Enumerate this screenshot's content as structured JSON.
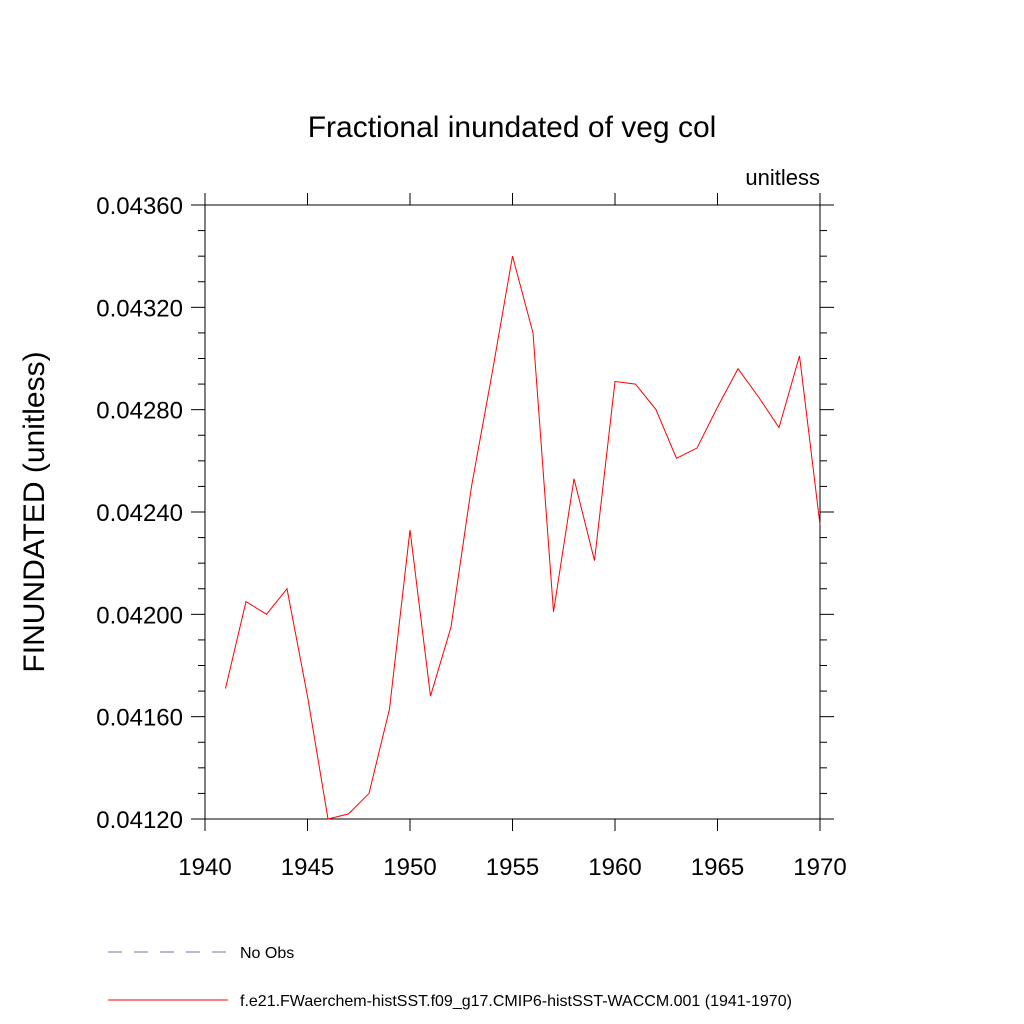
{
  "chart_data": {
    "type": "line",
    "title": "Fractional inundated of veg col",
    "units_label": "unitless",
    "ylabel": "FINUNDATED  (unitless)",
    "xlabel": "",
    "xlim": [
      1940,
      1970
    ],
    "ylim": [
      0.0412,
      0.0436
    ],
    "x_ticks": [
      1940,
      1945,
      1950,
      1955,
      1960,
      1965,
      1970
    ],
    "x_tick_labels": [
      "1940",
      "1945",
      "1950",
      "1955",
      "1960",
      "1965",
      "1970"
    ],
    "y_ticks": [
      0.0412,
      0.0416,
      0.042,
      0.0424,
      0.0428,
      0.0432,
      0.0436
    ],
    "y_tick_labels": [
      "0.04120",
      "0.04160",
      "0.04200",
      "0.04240",
      "0.04280",
      "0.04320",
      "0.04360"
    ],
    "grid": false,
    "legend_position": "bottom",
    "legend": [
      {
        "label": "No Obs",
        "style": "dashed",
        "color": "#7a6ea8"
      },
      {
        "label": "f.e21.FWaerchem-histSST.f09_g17.CMIP6-histSST-WACCM.001 (1941-1970)",
        "style": "solid",
        "color": "#ff0000"
      }
    ],
    "series": [
      {
        "name": "f.e21.FWaerchem-histSST.f09_g17.CMIP6-histSST-WACCM.001 (1941-1970)",
        "color": "#ff0000",
        "x": [
          1941,
          1942,
          1943,
          1944,
          1945,
          1946,
          1947,
          1948,
          1949,
          1950,
          1951,
          1952,
          1953,
          1954,
          1955,
          1956,
          1957,
          1958,
          1959,
          1960,
          1961,
          1962,
          1963,
          1964,
          1965,
          1966,
          1967,
          1968,
          1969,
          1970
        ],
        "values": [
          0.04171,
          0.04205,
          0.042,
          0.0421,
          0.04168,
          0.0412,
          0.04122,
          0.0413,
          0.04163,
          0.04233,
          0.04168,
          0.04195,
          0.0425,
          0.04294,
          0.0434,
          0.0431,
          0.04201,
          0.04253,
          0.04221,
          0.04291,
          0.0429,
          0.0428,
          0.04261,
          0.04265,
          0.04281,
          0.04296,
          0.04285,
          0.04273,
          0.04301,
          0.04235
        ]
      }
    ]
  }
}
